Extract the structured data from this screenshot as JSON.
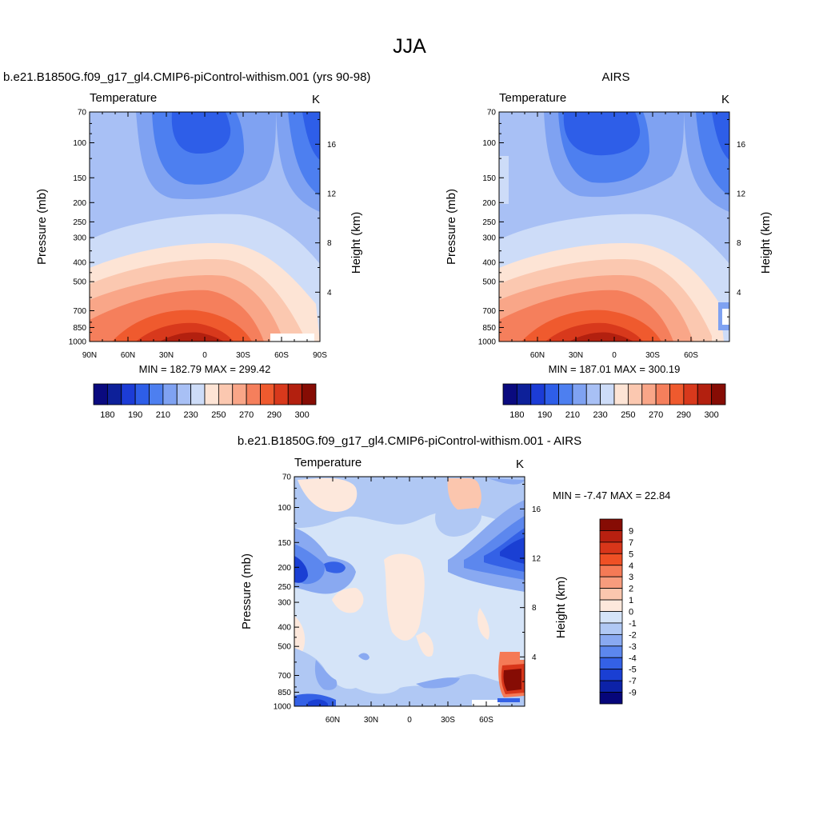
{
  "page": {
    "title": "JJA"
  },
  "chart_data": [
    {
      "type": "heatmap",
      "title": "b.e21.B1850G.f09_g17_gl4.CMIP6-piControl-withism.001 (yrs 90-98)",
      "subtitle_left": "Temperature",
      "subtitle_right": "K",
      "ylabel": "Pressure (mb)",
      "ylabel_right": "Height (km)",
      "x_ticks": [
        "90N",
        "60N",
        "30N",
        "0",
        "30S",
        "60S",
        "90S"
      ],
      "y_ticks": [
        "70",
        "100",
        "150",
        "200",
        "250",
        "300",
        "400",
        "500",
        "700",
        "850",
        "1000"
      ],
      "y_right_ticks": [
        "16",
        "12",
        "8",
        "4"
      ],
      "minmax": "MIN = 182.79  MAX = 299.42",
      "min": 182.79,
      "max": 299.42,
      "colorbar_labels": [
        "180",
        "190",
        "210",
        "230",
        "250",
        "270",
        "290",
        "300"
      ]
    },
    {
      "type": "heatmap",
      "title": "AIRS",
      "subtitle_left": "Temperature",
      "subtitle_right": "K",
      "ylabel": "Pressure (mb)",
      "ylabel_right": "Height (km)",
      "x_ticks": [
        "60N",
        "30N",
        "0",
        "30S",
        "60S"
      ],
      "y_ticks": [
        "70",
        "100",
        "150",
        "200",
        "250",
        "300",
        "400",
        "500",
        "700",
        "850",
        "1000"
      ],
      "y_right_ticks": [
        "16",
        "12",
        "8",
        "4"
      ],
      "minmax": "MIN = 187.01  MAX = 300.19",
      "min": 187.01,
      "max": 300.19,
      "colorbar_labels": [
        "180",
        "190",
        "210",
        "230",
        "250",
        "270",
        "290",
        "300"
      ]
    },
    {
      "type": "heatmap",
      "title": "b.e21.B1850G.f09_g17_gl4.CMIP6-piControl-withism.001 - AIRS",
      "subtitle_left": "Temperature",
      "subtitle_right": "K",
      "ylabel": "Pressure (mb)",
      "ylabel_right": "Height (km)",
      "x_ticks": [
        "60N",
        "30N",
        "0",
        "30S",
        "60S"
      ],
      "y_ticks": [
        "70",
        "100",
        "150",
        "200",
        "250",
        "300",
        "400",
        "500",
        "700",
        "850",
        "1000"
      ],
      "y_right_ticks": [
        "16",
        "12",
        "8",
        "4"
      ],
      "minmax": "MIN =  -7.47  MAX =  22.84",
      "min": -7.47,
      "max": 22.84,
      "colorbar_labels": [
        "9",
        "7",
        "5",
        "4",
        "3",
        "2",
        "1",
        "0",
        "-1",
        "-2",
        "-3",
        "-4",
        "-5",
        "-7",
        "-9"
      ]
    }
  ],
  "colors": {
    "abs_scale": [
      "#0a0a7f",
      "#0d2099",
      "#1c3cd6",
      "#2e5ee8",
      "#4d7ff0",
      "#7fa2f2",
      "#a8c0f5",
      "#cddcf8",
      "#fde4d5",
      "#fbc8b0",
      "#f9a688",
      "#f57f5c",
      "#ef5a2e",
      "#d8391c",
      "#b3200f",
      "#860c04"
    ],
    "diff_scale_top_to_bottom": [
      "#860c04",
      "#b82010",
      "#d8361a",
      "#ef5025",
      "#f57a56",
      "#f89c7d",
      "#fbc6ae",
      "#fde8dc",
      "#d5e4f8",
      "#b0c8f4",
      "#89a9f1",
      "#5c87ee",
      "#3461e6",
      "#1a3fd3",
      "#0c22a8",
      "#06067a"
    ]
  }
}
